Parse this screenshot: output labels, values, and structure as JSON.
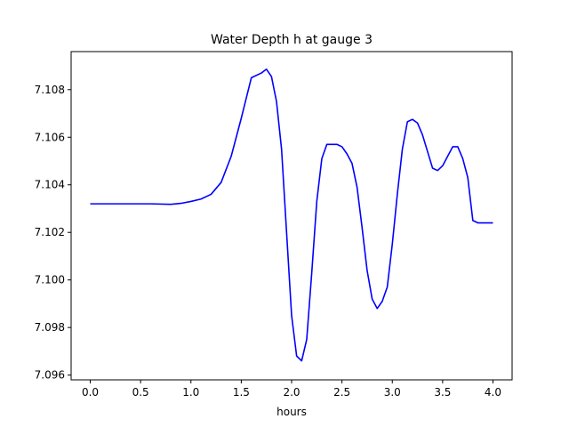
{
  "chart_data": {
    "type": "line",
    "title": "Water Depth h at gauge 3",
    "xlabel": "hours",
    "ylabel": "",
    "xlim": [
      -0.19,
      4.19
    ],
    "ylim": [
      7.0958,
      7.1096
    ],
    "xticks": [
      0.0,
      0.5,
      1.0,
      1.5,
      2.0,
      2.5,
      3.0,
      3.5,
      4.0
    ],
    "xtick_labels": [
      "0.0",
      "0.5",
      "1.0",
      "1.5",
      "2.0",
      "2.5",
      "3.0",
      "3.5",
      "4.0"
    ],
    "yticks": [
      7.096,
      7.098,
      7.1,
      7.102,
      7.104,
      7.106,
      7.108
    ],
    "ytick_labels": [
      "7.096",
      "7.098",
      "7.100",
      "7.102",
      "7.104",
      "7.106",
      "7.108"
    ],
    "grid": false,
    "legend": false,
    "series": [
      {
        "color": "#0000ff",
        "x": [
          0.0,
          0.2,
          0.4,
          0.6,
          0.8,
          0.9,
          1.0,
          1.1,
          1.2,
          1.3,
          1.4,
          1.5,
          1.6,
          1.7,
          1.75,
          1.8,
          1.85,
          1.9,
          1.95,
          2.0,
          2.05,
          2.1,
          2.15,
          2.2,
          2.25,
          2.3,
          2.35,
          2.4,
          2.45,
          2.5,
          2.55,
          2.6,
          2.65,
          2.7,
          2.75,
          2.8,
          2.85,
          2.9,
          2.95,
          3.0,
          3.05,
          3.1,
          3.15,
          3.2,
          3.25,
          3.3,
          3.35,
          3.4,
          3.45,
          3.5,
          3.55,
          3.6,
          3.65,
          3.7,
          3.75,
          3.8,
          3.85,
          3.9,
          3.95,
          4.0
        ],
        "y": [
          7.1032,
          7.1032,
          7.1032,
          7.1032,
          7.10318,
          7.10322,
          7.1033,
          7.1034,
          7.1036,
          7.1041,
          7.1052,
          7.1068,
          7.1085,
          7.1087,
          7.10886,
          7.10855,
          7.1075,
          7.1055,
          7.102,
          7.0985,
          7.0968,
          7.0966,
          7.0975,
          7.1003,
          7.1033,
          7.1051,
          7.1057,
          7.1057,
          7.1057,
          7.1056,
          7.1053,
          7.1049,
          7.1039,
          7.1022,
          7.1004,
          7.0992,
          7.0988,
          7.0991,
          7.0997,
          7.1015,
          7.1036,
          7.1055,
          7.10665,
          7.10675,
          7.1066,
          7.1061,
          7.1054,
          7.1047,
          7.1046,
          7.1048,
          7.1052,
          7.1056,
          7.1056,
          7.1051,
          7.1043,
          7.1025,
          7.1024,
          7.1024,
          7.1024,
          7.1024
        ]
      }
    ]
  }
}
